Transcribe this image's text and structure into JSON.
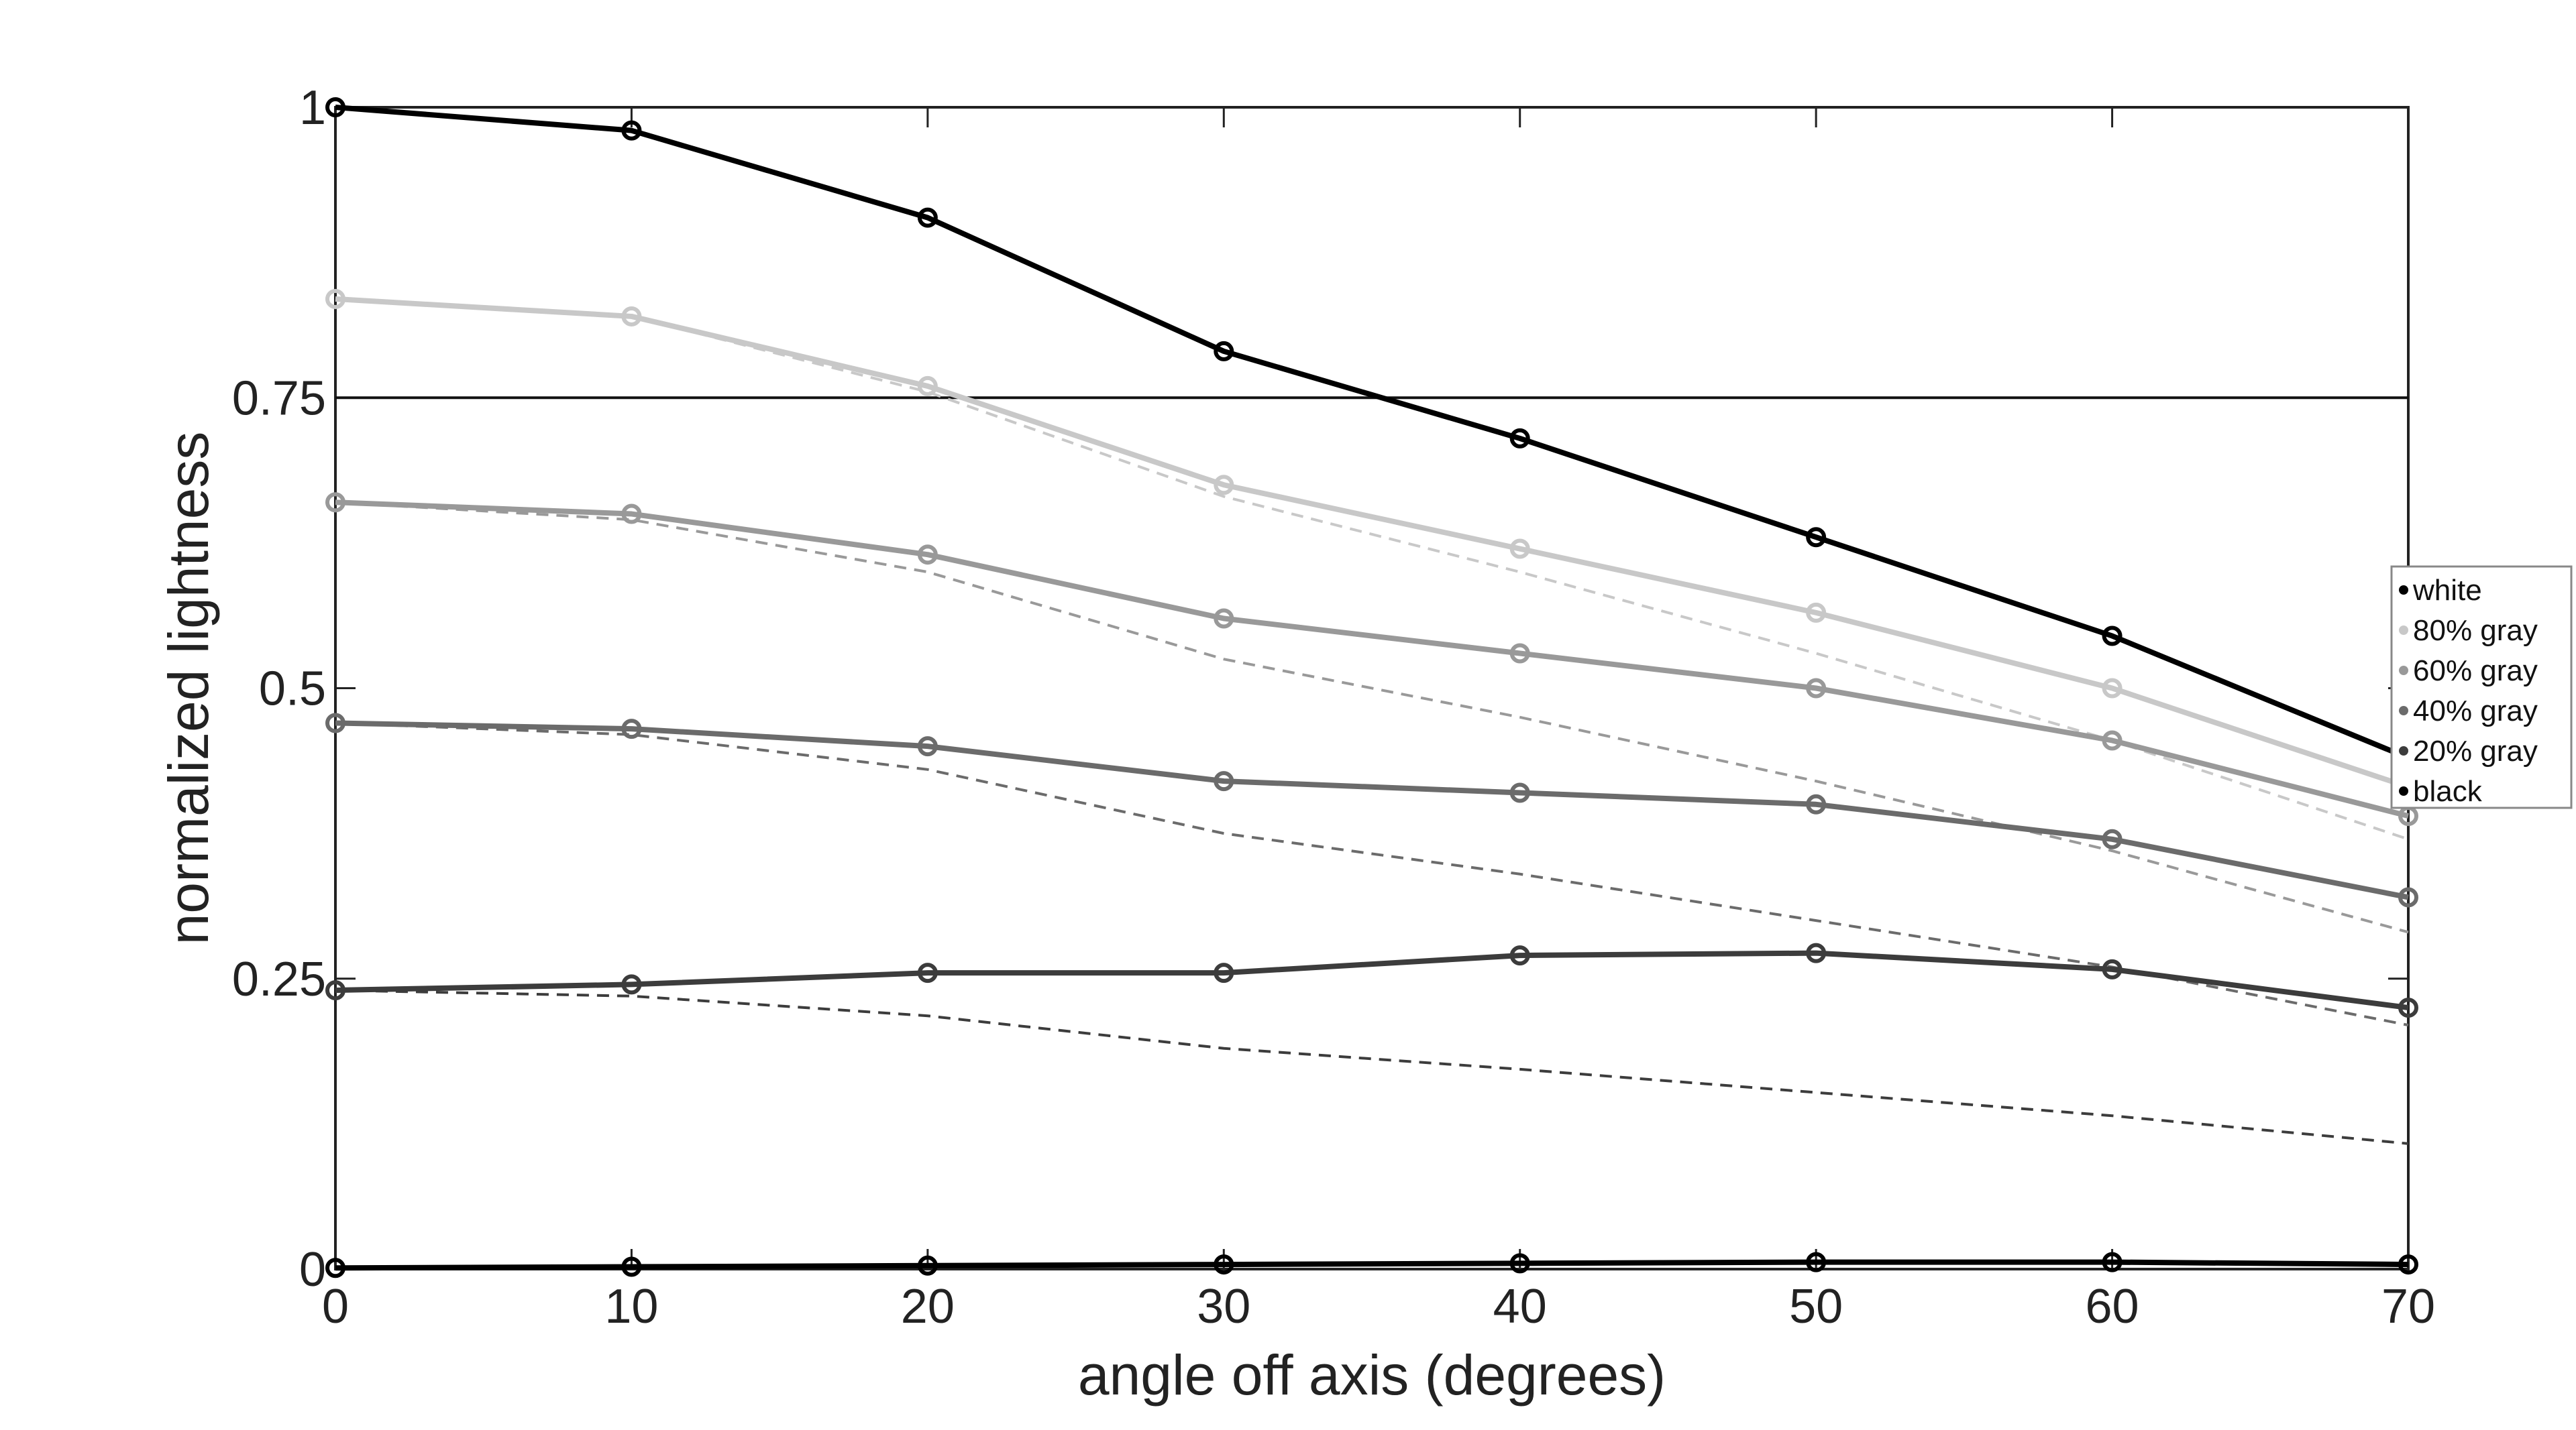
{
  "chart_data": {
    "type": "line",
    "title": "",
    "xlabel": "angle off axis (degrees)",
    "ylabel": "normalized lightness",
    "x": [
      0,
      10,
      20,
      30,
      40,
      50,
      60,
      70
    ],
    "xlim": [
      0,
      70
    ],
    "ylim": [
      0,
      1
    ],
    "x_ticks": [
      "0",
      "10",
      "20",
      "30",
      "40",
      "50",
      "60",
      "70"
    ],
    "y_ticks": [
      {
        "value": 0,
        "label": "0"
      },
      {
        "value": 0.25,
        "label": "0.25"
      },
      {
        "value": 0.5,
        "label": "0.5"
      },
      {
        "value": 0.75,
        "label": "0.75"
      },
      {
        "value": 1,
        "label": "1"
      }
    ],
    "grid": false,
    "legend_position": "right",
    "reference_line": {
      "y": 0.75
    },
    "series": [
      {
        "name": "white",
        "color": "#000000",
        "values": [
          1.0,
          0.98,
          0.905,
          0.79,
          0.715,
          0.63,
          0.545,
          0.44
        ]
      },
      {
        "name": "80% gray",
        "color": "#c8c8c8",
        "values": [
          0.835,
          0.82,
          0.76,
          0.675,
          0.62,
          0.565,
          0.5,
          0.415
        ]
      },
      {
        "name": "60% gray",
        "color": "#999999",
        "values": [
          0.66,
          0.65,
          0.615,
          0.56,
          0.53,
          0.5,
          0.455,
          0.39
        ]
      },
      {
        "name": "40% gray",
        "color": "#6b6b6b",
        "values": [
          0.47,
          0.465,
          0.45,
          0.42,
          0.41,
          0.4,
          0.37,
          0.32
        ]
      },
      {
        "name": "20% gray",
        "color": "#3c3c3c",
        "values": [
          0.24,
          0.245,
          0.255,
          0.255,
          0.27,
          0.272,
          0.258,
          0.225
        ]
      },
      {
        "name": "black",
        "color": "#000000",
        "values": [
          0.001,
          0.002,
          0.003,
          0.004,
          0.005,
          0.006,
          0.006,
          0.004
        ]
      }
    ],
    "reference_series": [
      {
        "color": "#c8c8c8",
        "values": [
          0.835,
          0.82,
          0.755,
          0.665,
          0.6,
          0.53,
          0.455,
          0.37
        ]
      },
      {
        "color": "#999999",
        "values": [
          0.66,
          0.645,
          0.6,
          0.525,
          0.475,
          0.42,
          0.36,
          0.29
        ]
      },
      {
        "color": "#6b6b6b",
        "values": [
          0.47,
          0.46,
          0.43,
          0.375,
          0.34,
          0.3,
          0.26,
          0.21
        ]
      },
      {
        "color": "#3c3c3c",
        "values": [
          0.24,
          0.235,
          0.218,
          0.19,
          0.172,
          0.152,
          0.132,
          0.108
        ]
      }
    ]
  }
}
